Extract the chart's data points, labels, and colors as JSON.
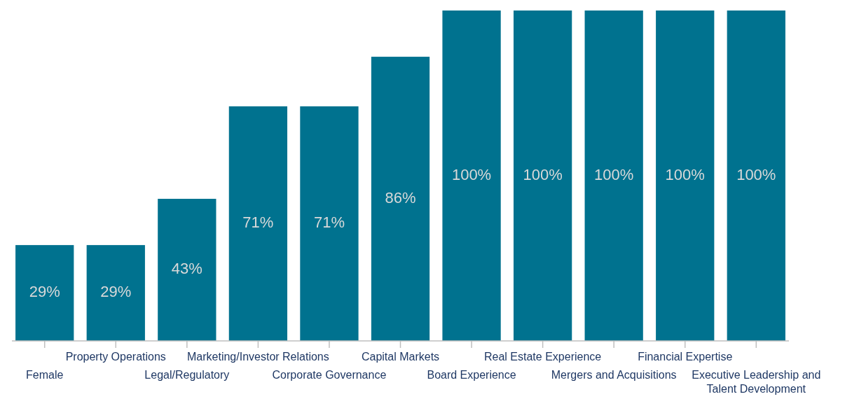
{
  "chart_data": {
    "type": "bar",
    "categories": [
      "Female",
      "Property Operations",
      "Legal/Regulatory",
      "Marketing/Investor Relations",
      "Corporate Governance",
      "Capital Markets",
      "Board Experience",
      "Real Estate Experience",
      "Mergers and Acquisitions",
      "Financial Expertise",
      "Executive Leadership and\nTalent Development"
    ],
    "values": [
      29,
      29,
      43,
      71,
      71,
      86,
      100,
      100,
      100,
      100,
      100
    ],
    "value_labels": [
      "29%",
      "29%",
      "43%",
      "71%",
      "71%",
      "86%",
      "100%",
      "100%",
      "100%",
      "100%",
      "100%"
    ],
    "color": "#00728f"
  }
}
